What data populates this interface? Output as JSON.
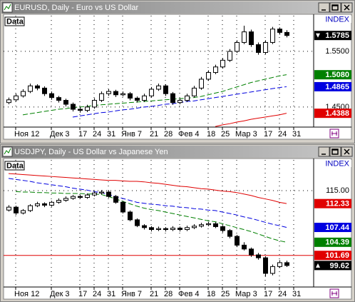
{
  "chart_data": [
    {
      "type": "candlestick",
      "title": "EURUSD, Daily - Euro vs US Dollar",
      "panel_label": "Data",
      "index_label": "INDEX",
      "categories": [
        null,
        "Ноя 12",
        null,
        null,
        null,
        null,
        "Дек 3",
        null,
        null,
        null,
        "17",
        null,
        "24",
        null,
        "31",
        null,
        "Янв 7",
        null,
        null,
        null,
        "21",
        null,
        "28",
        null,
        "Фев 4",
        null,
        null,
        null,
        "18",
        null,
        "25",
        null,
        "Мар 3",
        null,
        null,
        null,
        "17",
        null,
        "24",
        null,
        "31"
      ],
      "ohlc": [
        [
          1.458,
          1.467,
          1.455,
          1.463
        ],
        [
          1.463,
          1.474,
          1.46,
          1.47
        ],
        [
          1.47,
          1.482,
          1.467,
          1.478
        ],
        [
          1.478,
          1.492,
          1.475,
          1.488
        ],
        [
          1.488,
          1.491,
          1.48,
          1.484
        ],
        [
          1.484,
          1.487,
          1.47,
          1.474
        ],
        [
          1.474,
          1.478,
          1.463,
          1.467
        ],
        [
          1.467,
          1.47,
          1.458,
          1.462
        ],
        [
          1.462,
          1.465,
          1.451,
          1.455
        ],
        [
          1.455,
          1.458,
          1.442,
          1.446
        ],
        [
          1.446,
          1.45,
          1.44,
          1.444
        ],
        [
          1.444,
          1.454,
          1.441,
          1.45
        ],
        [
          1.45,
          1.466,
          1.447,
          1.462
        ],
        [
          1.462,
          1.478,
          1.459,
          1.474
        ],
        [
          1.474,
          1.482,
          1.47,
          1.478
        ],
        [
          1.478,
          1.481,
          1.468,
          1.472
        ],
        [
          1.472,
          1.478,
          1.469,
          1.474
        ],
        [
          1.474,
          1.477,
          1.462,
          1.466
        ],
        [
          1.466,
          1.469,
          1.458,
          1.462
        ],
        [
          1.462,
          1.474,
          1.459,
          1.47
        ],
        [
          1.47,
          1.486,
          1.467,
          1.482
        ],
        [
          1.482,
          1.492,
          1.479,
          1.488
        ],
        [
          1.488,
          1.491,
          1.47,
          1.474
        ],
        [
          1.474,
          1.477,
          1.454,
          1.458
        ],
        [
          1.458,
          1.466,
          1.455,
          1.462
        ],
        [
          1.462,
          1.474,
          1.459,
          1.47
        ],
        [
          1.47,
          1.488,
          1.467,
          1.484
        ],
        [
          1.484,
          1.504,
          1.481,
          1.5
        ],
        [
          1.5,
          1.516,
          1.497,
          1.512
        ],
        [
          1.512,
          1.526,
          1.509,
          1.522
        ],
        [
          1.522,
          1.538,
          1.519,
          1.534
        ],
        [
          1.534,
          1.554,
          1.531,
          1.55
        ],
        [
          1.55,
          1.57,
          1.547,
          1.566
        ],
        [
          1.566,
          1.596,
          1.563,
          1.585
        ],
        [
          1.585,
          1.589,
          1.558,
          1.562
        ],
        [
          1.562,
          1.566,
          1.544,
          1.548
        ],
        [
          1.548,
          1.57,
          1.545,
          1.566
        ],
        [
          1.566,
          1.594,
          1.563,
          1.59
        ],
        [
          1.59,
          1.593,
          1.58,
          1.584
        ],
        [
          1.584,
          1.588,
          1.575,
          1.5785
        ],
        null
      ],
      "up_color": "#ffffff",
      "down_color": "#000000",
      "series": [
        {
          "color": "#008000",
          "values": [
            null,
            null,
            1.436,
            1.438,
            1.44,
            1.442,
            1.444,
            1.446,
            1.447,
            1.449,
            1.45,
            1.451,
            1.453,
            1.454,
            1.455,
            1.456,
            1.457,
            1.458,
            1.459,
            1.46,
            1.461,
            1.462,
            1.463,
            1.464,
            1.465,
            1.466,
            1.467,
            1.469,
            1.472,
            1.475,
            1.478,
            1.482,
            1.486,
            1.49,
            1.494,
            1.497,
            1.5,
            1.503,
            1.506,
            1.508,
            null
          ],
          "last": {
            "value": 1.508,
            "label": "1.5080"
          }
        },
        {
          "color": "#0000e0",
          "values": [
            null,
            null,
            null,
            null,
            null,
            null,
            null,
            null,
            null,
            1.432,
            1.434,
            1.436,
            1.438,
            1.44,
            1.441,
            1.443,
            1.445,
            1.446,
            1.448,
            1.45,
            1.451,
            1.453,
            1.455,
            1.456,
            1.458,
            1.46,
            1.461,
            1.463,
            1.465,
            1.467,
            1.469,
            1.471,
            1.473,
            1.475,
            1.477,
            1.479,
            1.481,
            1.483,
            1.485,
            1.4865,
            null
          ],
          "last": {
            "value": 1.4865,
            "label": "1.4865"
          }
        },
        {
          "color": "#e00000",
          "values": [
            null,
            null,
            null,
            null,
            null,
            null,
            null,
            null,
            null,
            null,
            null,
            null,
            null,
            null,
            null,
            null,
            null,
            null,
            null,
            null,
            null,
            null,
            null,
            null,
            null,
            null,
            null,
            null,
            null,
            1.415,
            1.418,
            1.42,
            1.423,
            1.425,
            1.428,
            1.43,
            1.432,
            1.434,
            1.436,
            1.4388,
            null
          ],
          "last": {
            "value": 1.4388,
            "label": "1.4388"
          }
        }
      ],
      "current": {
        "value": 1.5785,
        "label": "1.5785"
      },
      "ylim": [
        1.414,
        1.614
      ],
      "yticks": [
        {
          "value": 1.55,
          "label": "1.5500"
        },
        {
          "value": 1.45,
          "label": "1.4500"
        }
      ],
      "grid": true
    },
    {
      "type": "candlestick",
      "title": "USDJPY, Daily - US Dollar vs Japanese Yen",
      "panel_label": "Data",
      "index_label": "INDEX",
      "categories": [
        null,
        "Ноя 12",
        null,
        null,
        null,
        null,
        "Дек 3",
        null,
        null,
        null,
        "17",
        null,
        "24",
        null,
        "31",
        null,
        "Янв 7",
        null,
        null,
        null,
        "21",
        null,
        "28",
        null,
        "Фев 4",
        null,
        null,
        null,
        "18",
        null,
        "25",
        null,
        "Мар 3",
        null,
        null,
        null,
        "17",
        null,
        "24",
        null,
        "31"
      ],
      "ohlc": [
        [
          111.0,
          112.0,
          110.7,
          111.6
        ],
        [
          111.6,
          111.9,
          110.0,
          110.4
        ],
        [
          110.4,
          111.2,
          110.1,
          110.9
        ],
        [
          110.9,
          112.2,
          110.6,
          111.9
        ],
        [
          111.9,
          112.7,
          111.6,
          112.3
        ],
        [
          112.3,
          112.6,
          111.6,
          112.0
        ],
        [
          112.0,
          112.9,
          111.7,
          112.6
        ],
        [
          112.6,
          113.4,
          112.3,
          113.0
        ],
        [
          113.0,
          113.8,
          112.7,
          113.4
        ],
        [
          113.4,
          114.1,
          113.1,
          113.8
        ],
        [
          113.8,
          114.1,
          113.3,
          113.6
        ],
        [
          113.6,
          114.4,
          113.3,
          114.1
        ],
        [
          114.1,
          114.9,
          113.8,
          114.5
        ],
        [
          114.5,
          115.1,
          114.2,
          114.7
        ],
        [
          114.7,
          115.0,
          113.5,
          113.8
        ],
        [
          113.8,
          114.1,
          112.3,
          112.6
        ],
        [
          112.6,
          112.9,
          110.3,
          110.6
        ],
        [
          110.6,
          110.9,
          108.7,
          109.0
        ],
        [
          109.0,
          109.3,
          107.5,
          107.8
        ],
        [
          107.8,
          108.1,
          107.0,
          107.4
        ],
        [
          107.4,
          107.7,
          106.6,
          107.0
        ],
        [
          107.0,
          107.6,
          106.7,
          107.2
        ],
        [
          107.2,
          107.5,
          106.6,
          107.0
        ],
        [
          107.0,
          107.7,
          106.7,
          107.3
        ],
        [
          107.3,
          107.6,
          106.6,
          107.0
        ],
        [
          107.0,
          107.8,
          106.7,
          107.4
        ],
        [
          107.4,
          108.1,
          107.1,
          107.7
        ],
        [
          107.7,
          108.4,
          107.4,
          108.0
        ],
        [
          108.0,
          108.6,
          107.7,
          108.2
        ],
        [
          108.2,
          108.5,
          107.3,
          107.6
        ],
        [
          107.6,
          107.9,
          106.4,
          106.8
        ],
        [
          106.8,
          107.1,
          105.2,
          105.6
        ],
        [
          105.6,
          105.9,
          103.4,
          103.8
        ],
        [
          103.8,
          104.4,
          102.7,
          103.0
        ],
        [
          103.0,
          103.3,
          101.4,
          101.8
        ],
        [
          101.8,
          102.2,
          100.8,
          101.2
        ],
        [
          101.2,
          101.5,
          97.3,
          98.0
        ],
        [
          98.0,
          99.8,
          97.6,
          99.4
        ],
        [
          99.4,
          100.7,
          99.1,
          100.2
        ],
        [
          100.2,
          100.6,
          99.3,
          99.62
        ],
        null
      ],
      "up_color": "#ffffff",
      "down_color": "#000000",
      "series": [
        {
          "color": "#e00000",
          "values": [
            118.5,
            118.4,
            118.3,
            118.2,
            118.1,
            118.0,
            117.9,
            117.8,
            117.7,
            117.6,
            117.5,
            117.4,
            117.3,
            117.2,
            117.1,
            117.1,
            117.0,
            116.9,
            116.9,
            116.8,
            116.6,
            116.5,
            116.3,
            116.1,
            115.9,
            115.8,
            115.6,
            115.4,
            115.3,
            115.1,
            114.9,
            114.8,
            114.6,
            114.3,
            114.0,
            113.6,
            113.3,
            113.0,
            112.6,
            112.33,
            null
          ],
          "last": {
            "value": 112.33,
            "label": "112.33"
          }
        },
        {
          "color": "#0000e0",
          "values": [
            117.5,
            117.3,
            117.1,
            116.9,
            116.6,
            116.4,
            116.2,
            116.0,
            115.8,
            115.5,
            115.3,
            115.1,
            114.8,
            114.6,
            114.2,
            113.8,
            113.4,
            113.0,
            112.6,
            112.4,
            112.2,
            112.1,
            111.9,
            111.8,
            111.6,
            111.5,
            111.3,
            111.2,
            111.0,
            110.9,
            110.6,
            110.3,
            110.0,
            109.6,
            109.3,
            108.9,
            108.5,
            108.1,
            107.8,
            107.44,
            null
          ],
          "last": {
            "value": 107.44,
            "label": "107.44"
          }
        },
        {
          "color": "#008000",
          "values": [
            null,
            114.8,
            114.7,
            114.7,
            114.6,
            114.6,
            114.5,
            114.5,
            114.4,
            114.4,
            114.4,
            114.3,
            114.3,
            114.2,
            113.8,
            113.3,
            112.8,
            112.3,
            111.8,
            111.4,
            111.1,
            110.9,
            110.6,
            110.3,
            110.0,
            109.7,
            109.4,
            109.1,
            108.8,
            108.6,
            108.2,
            107.8,
            107.4,
            107.0,
            106.6,
            106.1,
            105.6,
            105.1,
            104.7,
            104.39,
            null
          ],
          "last": {
            "value": 104.39,
            "label": "104.39"
          }
        }
      ],
      "hline": {
        "value": 101.69,
        "label": "101.69",
        "color": "#e00000"
      },
      "current": {
        "value": 99.62,
        "label": "99.62"
      },
      "ylim": [
        95.2,
        121.3
      ],
      "yticks": [
        {
          "value": 115,
          "label": "115.00"
        }
      ],
      "grid": true
    }
  ]
}
